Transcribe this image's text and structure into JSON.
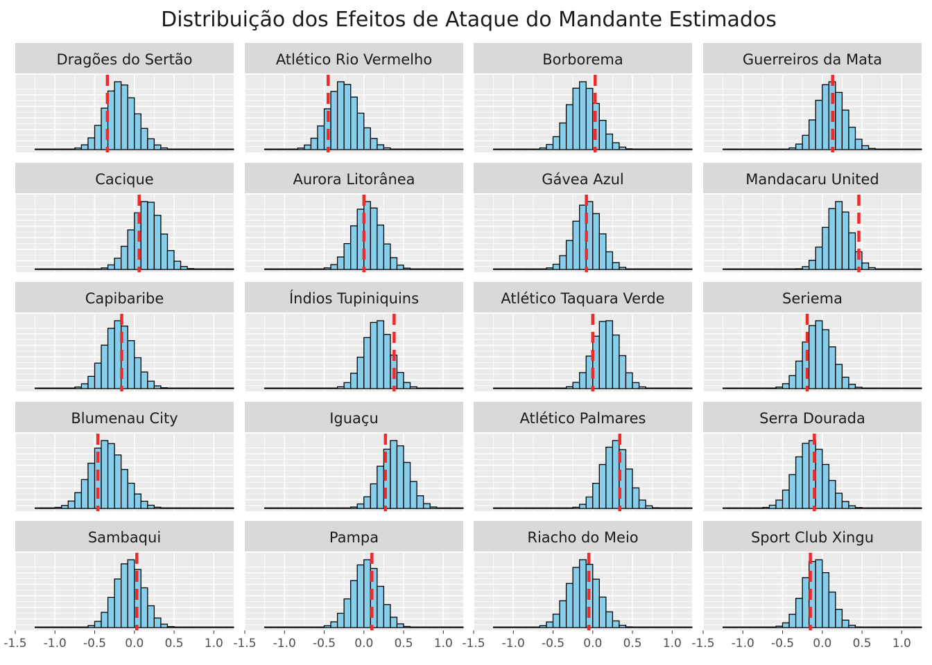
{
  "chart_data": {
    "type": "histogram-facets",
    "title": "Distribuição dos Efeitos de Ataque do Mandante Estimados",
    "xlabel": "",
    "ylabel": "",
    "xlim": [
      -1.5,
      1.25
    ],
    "x_ticks": [
      -1.5,
      -1.0,
      -0.5,
      0.0,
      0.5,
      1.0
    ],
    "x_tick_labels": [
      "-1.5",
      "-1.0",
      "-0.5",
      "0.0",
      "0.5",
      "1.0"
    ],
    "x_tick_labels_first_col": [
      "-1.5",
      "-1.0",
      "-0.5",
      "0.0",
      "0.5",
      "1.0",
      ""
    ],
    "bin_width": 0.0833,
    "bar_fill": "#87CEEB",
    "bar_stroke": "#000000",
    "reference_line_color": "#ee2b2b",
    "panel_background": "#ebebeb",
    "strip_background": "#d9d9d9",
    "facets": [
      {
        "team": "Dragões do Sertão",
        "center": -0.15,
        "sd": 0.2,
        "skew": -0.35,
        "ref_value": -0.34
      },
      {
        "team": "Atlético Rio Vermelho",
        "center": -0.23,
        "sd": 0.2,
        "skew": -0.35,
        "ref_value": -0.45
      },
      {
        "team": "Borborema",
        "center": -0.1,
        "sd": 0.19,
        "skew": -0.25,
        "ref_value": 0.03
      },
      {
        "team": "Guerreiros da Mata",
        "center": 0.12,
        "sd": 0.18,
        "skew": -0.2,
        "ref_value": 0.13
      },
      {
        "team": "Cacique",
        "center": 0.14,
        "sd": 0.19,
        "skew": 0.2,
        "ref_value": 0.06
      },
      {
        "team": "Aurora Litorânea",
        "center": 0.03,
        "sd": 0.18,
        "skew": 0.15,
        "ref_value": 0.0
      },
      {
        "team": "Gávea Azul",
        "center": -0.08,
        "sd": 0.17,
        "skew": 0.15,
        "ref_value": -0.08
      },
      {
        "team": "Mandacaru United",
        "center": 0.19,
        "sd": 0.16,
        "skew": 0.1,
        "ref_value": 0.46
      },
      {
        "team": "Capibaribe",
        "center": -0.18,
        "sd": 0.19,
        "skew": -0.2,
        "ref_value": -0.16
      },
      {
        "team": "Índios Tupiniquins",
        "center": 0.16,
        "sd": 0.17,
        "skew": 0.15,
        "ref_value": 0.38
      },
      {
        "team": "Atlético Taquara Verde",
        "center": 0.16,
        "sd": 0.17,
        "skew": 0.1,
        "ref_value": 0.0
      },
      {
        "team": "Seriema",
        "center": -0.04,
        "sd": 0.18,
        "skew": -0.15,
        "ref_value": -0.19
      },
      {
        "team": "Blumenau City",
        "center": -0.31,
        "sd": 0.22,
        "skew": -0.4,
        "ref_value": -0.46
      },
      {
        "team": "Iguaçu",
        "center": 0.37,
        "sd": 0.18,
        "skew": 0.15,
        "ref_value": 0.27
      },
      {
        "team": "Atlético Palmares",
        "center": 0.27,
        "sd": 0.17,
        "skew": 0.15,
        "ref_value": 0.34
      },
      {
        "team": "Serra Dourada",
        "center": -0.12,
        "sd": 0.2,
        "skew": -0.25,
        "ref_value": -0.1
      },
      {
        "team": "Sambaqui",
        "center": -0.07,
        "sd": 0.18,
        "skew": 0.1,
        "ref_value": 0.03
      },
      {
        "team": "Pampa",
        "center": 0.02,
        "sd": 0.18,
        "skew": 0.1,
        "ref_value": 0.1
      },
      {
        "team": "Riacho do Meio",
        "center": -0.12,
        "sd": 0.19,
        "skew": 0.05,
        "ref_value": -0.05
      },
      {
        "team": "Sport Club Xingu",
        "center": -0.06,
        "sd": 0.17,
        "skew": -0.15,
        "ref_value": -0.15
      }
    ]
  }
}
